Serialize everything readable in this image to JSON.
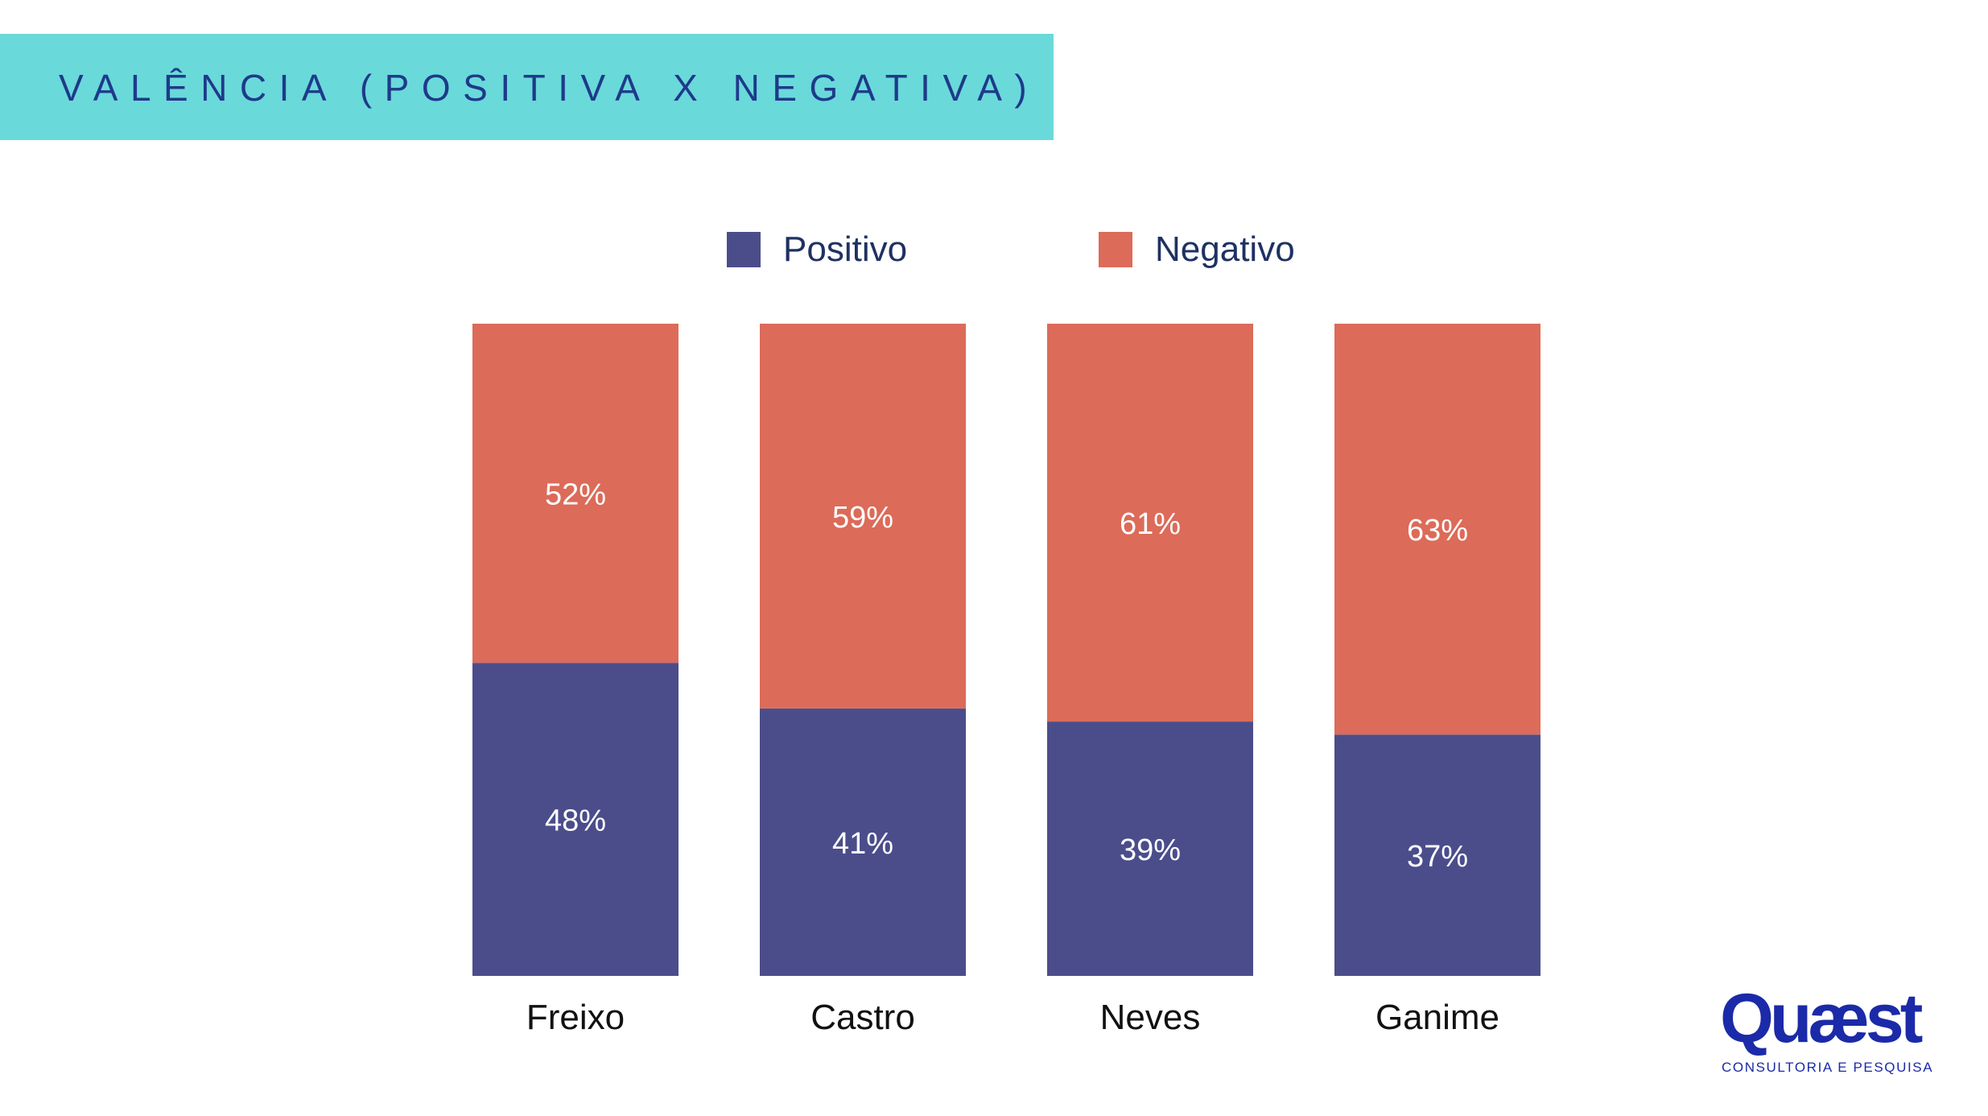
{
  "header": {
    "title": "VALÊNCIA (POSITIVA X NEGATIVA)"
  },
  "colors": {
    "header_band": "#6ad9da",
    "title_text": "#1e3a8a",
    "positivo": "#4b4d8b",
    "negativo": "#dc6b59",
    "bar_label": "#ffffff",
    "category_label": "#111111",
    "logo": "#1b2aa8"
  },
  "legend": {
    "items": [
      {
        "label": "Positivo",
        "color": "#4b4d8b"
      },
      {
        "label": "Negativo",
        "color": "#dc6b59"
      }
    ]
  },
  "chart_data": {
    "type": "bar",
    "stacked": true,
    "categories": [
      "Freixo",
      "Castro",
      "Neves",
      "Ganime"
    ],
    "series": [
      {
        "name": "Positivo",
        "values": [
          48,
          41,
          39,
          37
        ],
        "labels": [
          "48%",
          "41%",
          "39%",
          "37%"
        ],
        "color": "#4b4d8b"
      },
      {
        "name": "Negativo",
        "values": [
          52,
          59,
          61,
          63
        ],
        "labels": [
          "52%",
          "59%",
          "61%",
          "63%"
        ],
        "color": "#dc6b59"
      }
    ],
    "ylim": [
      0,
      100
    ],
    "grid": false,
    "legend_position": "top"
  },
  "logo": {
    "wordmark": "Quæst",
    "tagline": "CONSULTORIA E PESQUISA"
  }
}
